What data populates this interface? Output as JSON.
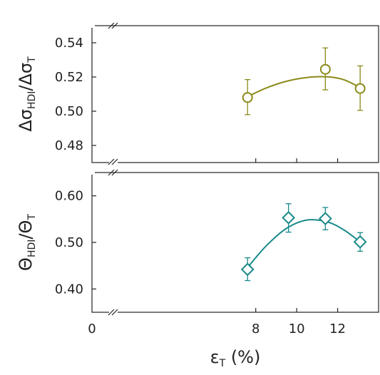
{
  "chart_data": [
    {
      "type": "scatter",
      "ylabel_main": "Δσ",
      "ylabel_sub": "HDI",
      "ylabel_denom": "/Δσ",
      "ylabel_denom_sub": "T",
      "xlim": [
        0,
        14
      ],
      "ylim": [
        0.47,
        0.55
      ],
      "yticks": [
        "0.48",
        "0.50",
        "0.52",
        "0.54"
      ],
      "ytick_values": [
        0.48,
        0.5,
        0.52,
        0.54
      ],
      "axis_break": "y-bottom and x-left",
      "color": "#8a8a1a",
      "marker": "circle",
      "points": [
        {
          "x": 7.6,
          "y": 0.508,
          "err_low": 0.498,
          "err_high": 0.5185
        },
        {
          "x": 11.4,
          "y": 0.5245,
          "err_low": 0.5125,
          "err_high": 0.537
        },
        {
          "x": 13.1,
          "y": 0.5133,
          "err_low": 0.5005,
          "err_high": 0.5265
        }
      ],
      "fit_curve": {
        "x": [
          7.6,
          8.5,
          9.5,
          10.5,
          11.5,
          12.3,
          13.1
        ],
        "y": [
          0.5085,
          0.5135,
          0.5175,
          0.5197,
          0.5201,
          0.5184,
          0.5138
        ]
      }
    },
    {
      "type": "scatter",
      "ylabel_main": "Θ",
      "ylabel_sub": "HDI",
      "ylabel_denom": "/Θ",
      "ylabel_denom_sub": "T",
      "xlim": [
        0,
        14
      ],
      "ylim": [
        0.35,
        0.65
      ],
      "yticks": [
        "0.40",
        "0.50",
        "0.60"
      ],
      "ytick_values": [
        0.4,
        0.5,
        0.6
      ],
      "xticks": [
        "0",
        "8",
        "10",
        "12"
      ],
      "xtick_values": [
        0,
        8,
        10,
        12
      ],
      "xlabel_main": "ε",
      "xlabel_sub": "T",
      "xlabel_rest": " (%)",
      "axis_break": "y-bottom and x-left",
      "color": "#1a8a8a",
      "marker": "diamond",
      "points": [
        {
          "x": 7.6,
          "y": 0.442,
          "err_low": 0.418,
          "err_high": 0.467
        },
        {
          "x": 9.6,
          "y": 0.553,
          "err_low": 0.522,
          "err_high": 0.583
        },
        {
          "x": 11.4,
          "y": 0.551,
          "err_low": 0.527,
          "err_high": 0.575
        },
        {
          "x": 13.1,
          "y": 0.501,
          "err_low": 0.481,
          "err_high": 0.521
        }
      ],
      "fit_curve": {
        "x": [
          7.6,
          8.5,
          9.5,
          10.5,
          11.5,
          12.3,
          13.1
        ],
        "y": [
          0.446,
          0.492,
          0.53,
          0.548,
          0.544,
          0.527,
          0.501
        ]
      }
    }
  ]
}
